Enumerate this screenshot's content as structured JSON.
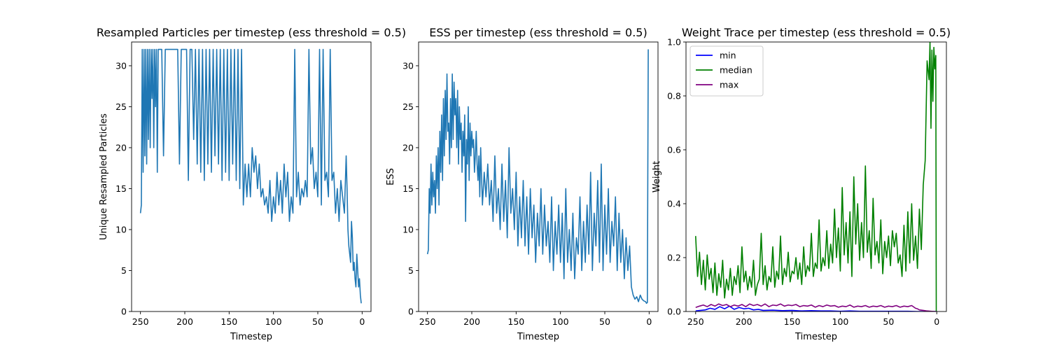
{
  "chart_data": [
    {
      "type": "line",
      "title": "Resampled Particles per timestep (ess threshold = 0.5)",
      "xlabel": "Timestep",
      "ylabel": "Unique Resampled Particles",
      "xlim": [
        260,
        -10
      ],
      "ylim": [
        0,
        32.9
      ],
      "xticks": [
        250,
        200,
        150,
        100,
        50,
        0
      ],
      "yticks": [
        0,
        5,
        10,
        15,
        20,
        25,
        30
      ],
      "grid": false,
      "series": [
        {
          "color": "#1f77b4",
          "x": [
            250,
            249,
            248,
            247,
            246,
            245,
            244,
            243,
            242,
            241,
            240,
            239,
            238,
            237,
            236,
            235,
            234,
            233,
            232,
            231,
            230,
            228,
            226,
            224,
            222,
            220,
            218,
            216,
            214,
            212,
            210,
            208,
            206,
            204,
            202,
            200,
            198,
            196,
            194,
            192,
            190,
            188,
            186,
            184,
            182,
            180,
            178,
            176,
            174,
            172,
            170,
            168,
            166,
            164,
            162,
            160,
            158,
            156,
            154,
            152,
            150,
            148,
            146,
            144,
            142,
            140,
            138,
            136,
            134,
            132,
            130,
            128,
            126,
            124,
            122,
            120,
            118,
            116,
            114,
            112,
            110,
            108,
            106,
            104,
            102,
            100,
            98,
            96,
            94,
            92,
            90,
            88,
            86,
            84,
            82,
            80,
            78,
            76,
            74,
            72,
            70,
            68,
            66,
            64,
            62,
            60,
            58,
            56,
            54,
            52,
            50,
            48,
            46,
            44,
            42,
            40,
            38,
            36,
            34,
            32,
            30,
            28,
            26,
            24,
            22,
            20,
            18,
            17,
            16,
            15,
            14,
            13,
            12,
            11,
            10,
            9,
            8,
            7,
            6,
            5,
            4,
            3,
            2,
            1
          ],
          "values": [
            12,
            13,
            32,
            17,
            32,
            19,
            32,
            18,
            32,
            21,
            32,
            20,
            32,
            26,
            32,
            20,
            32,
            25,
            32,
            17,
            32,
            32,
            32,
            19,
            32,
            32,
            32,
            32,
            32,
            32,
            32,
            32,
            18,
            32,
            32,
            32,
            32,
            16,
            32,
            32,
            21,
            32,
            18,
            32,
            17,
            32,
            16,
            32,
            18,
            32,
            17,
            32,
            19,
            32,
            18,
            32,
            16,
            32,
            17,
            32,
            16,
            32,
            18,
            32,
            16,
            32,
            15,
            32,
            13,
            18,
            14,
            18,
            14,
            20,
            17,
            19,
            15,
            18,
            14,
            15,
            13,
            14,
            12,
            16,
            11,
            14,
            12,
            17,
            13,
            16,
            12,
            18,
            14,
            17,
            11,
            14,
            12,
            32,
            14,
            17,
            13,
            15,
            14,
            16,
            14,
            32,
            18,
            20,
            15,
            17,
            14,
            32,
            13,
            32,
            16,
            17,
            14,
            32,
            16,
            17,
            12,
            15,
            11,
            16,
            14,
            12,
            19,
            15,
            10,
            8,
            7,
            6,
            11,
            9,
            5,
            6,
            4,
            3,
            7,
            5,
            3,
            4,
            2,
            1
          ]
        }
      ]
    },
    {
      "type": "line",
      "title": "ESS per timestep (ess threshold = 0.5)",
      "xlabel": "Timestep",
      "ylabel": "ESS",
      "xlim": [
        260,
        -10
      ],
      "ylim": [
        0,
        32.9
      ],
      "xticks": [
        250,
        200,
        150,
        100,
        50,
        0
      ],
      "yticks": [
        0,
        5,
        10,
        15,
        20,
        25,
        30
      ],
      "grid": false,
      "series": [
        {
          "color": "#1f77b4",
          "x": [
            250,
            249,
            248,
            247,
            246,
            245,
            244,
            243,
            242,
            241,
            240,
            239,
            238,
            237,
            236,
            235,
            234,
            233,
            232,
            231,
            230,
            229,
            228,
            227,
            226,
            225,
            224,
            223,
            222,
            221,
            220,
            219,
            218,
            217,
            216,
            215,
            214,
            213,
            212,
            211,
            210,
            209,
            208,
            207,
            206,
            205,
            204,
            203,
            202,
            201,
            200,
            199,
            198,
            197,
            196,
            195,
            194,
            193,
            192,
            191,
            190,
            188,
            186,
            184,
            182,
            180,
            178,
            176,
            174,
            172,
            170,
            168,
            166,
            164,
            162,
            160,
            158,
            156,
            154,
            152,
            150,
            148,
            146,
            144,
            142,
            140,
            138,
            136,
            134,
            132,
            130,
            128,
            126,
            124,
            122,
            120,
            118,
            116,
            114,
            112,
            110,
            108,
            106,
            104,
            102,
            100,
            98,
            96,
            94,
            92,
            90,
            88,
            86,
            84,
            82,
            80,
            78,
            76,
            74,
            72,
            70,
            68,
            66,
            64,
            62,
            60,
            58,
            56,
            54,
            52,
            50,
            48,
            46,
            44,
            42,
            40,
            38,
            36,
            34,
            32,
            30,
            28,
            26,
            24,
            22,
            20,
            18,
            16,
            14,
            12,
            10,
            8,
            6,
            4,
            3,
            2,
            1
          ],
          "values": [
            7,
            7.5,
            15,
            12,
            18,
            13,
            17,
            14,
            16,
            12,
            19,
            15,
            20,
            13,
            22,
            17,
            24,
            16,
            26,
            19,
            27,
            21,
            29,
            22,
            23,
            18,
            26,
            20,
            29,
            21,
            28,
            24,
            26,
            20,
            27,
            18,
            25,
            21,
            23,
            17,
            22,
            19,
            24,
            11,
            21,
            18,
            25,
            16,
            23,
            19,
            22,
            20,
            21,
            17,
            19,
            22,
            18,
            16,
            19,
            14,
            20,
            13,
            17,
            14,
            18,
            13,
            16,
            11,
            19,
            12,
            15,
            10,
            18,
            11,
            16,
            9,
            20,
            12,
            15,
            10,
            17,
            8,
            14,
            9,
            16,
            8,
            14,
            7,
            15,
            9,
            13,
            6,
            12,
            8,
            15,
            7,
            13,
            8,
            11,
            6,
            14,
            5,
            11,
            7,
            13,
            6,
            12,
            4,
            15,
            6,
            10,
            5,
            12,
            4,
            9,
            7,
            14,
            5,
            11,
            6,
            13,
            7,
            17,
            5,
            12,
            8,
            16,
            6,
            18,
            5,
            13,
            7,
            15,
            6,
            11,
            8,
            14,
            5,
            12,
            6,
            10,
            4,
            9,
            5,
            8,
            3,
            2,
            1.5,
            1.8,
            1.2,
            2,
            1.5,
            1.3,
            1.2,
            1,
            1.1,
            32
          ]
        }
      ]
    },
    {
      "type": "line",
      "title": "Weight Trace per timestep (ess threshold = 0.5)",
      "xlabel": "Timestep",
      "ylabel": "Weight",
      "xlim": [
        260,
        -10
      ],
      "ylim": [
        0,
        1.0
      ],
      "xticks": [
        250,
        200,
        150,
        100,
        50,
        0
      ],
      "yticks": [
        0.0,
        0.2,
        0.4,
        0.6,
        0.8,
        1.0
      ],
      "grid": false,
      "legend": "top-left",
      "series": [
        {
          "name": "min",
          "color": "#0000ff",
          "x": [
            250,
            245,
            240,
            235,
            230,
            225,
            220,
            215,
            210,
            205,
            200,
            195,
            190,
            185,
            180,
            170,
            160,
            150,
            140,
            130,
            120,
            110,
            100,
            90,
            80,
            70,
            60,
            50,
            40,
            30,
            20,
            10,
            0
          ],
          "values": [
            0.002,
            0.004,
            0.006,
            0.012,
            0.008,
            0.018,
            0.01,
            0.02,
            0.008,
            0.015,
            0.01,
            0.012,
            0.006,
            0.008,
            0.004,
            0.005,
            0.003,
            0.004,
            0.002,
            0.003,
            0.002,
            0.002,
            0.001,
            0.002,
            0.001,
            0.001,
            0.001,
            0.001,
            0.001,
            0.001,
            0.0,
            0.0,
            0.0
          ]
        },
        {
          "name": "median",
          "color": "#008000",
          "x": [
            250,
            248,
            246,
            244,
            242,
            240,
            238,
            236,
            234,
            232,
            230,
            228,
            226,
            224,
            222,
            220,
            218,
            216,
            214,
            212,
            210,
            208,
            206,
            204,
            202,
            200,
            198,
            196,
            194,
            192,
            190,
            188,
            186,
            184,
            182,
            180,
            178,
            176,
            174,
            172,
            170,
            168,
            166,
            164,
            162,
            160,
            158,
            156,
            154,
            152,
            150,
            148,
            146,
            144,
            142,
            140,
            138,
            136,
            134,
            132,
            130,
            128,
            126,
            124,
            122,
            120,
            118,
            116,
            114,
            112,
            110,
            108,
            106,
            104,
            102,
            100,
            98,
            96,
            94,
            92,
            90,
            88,
            86,
            84,
            82,
            80,
            78,
            76,
            74,
            72,
            70,
            68,
            66,
            64,
            62,
            60,
            58,
            56,
            54,
            52,
            50,
            48,
            46,
            44,
            42,
            40,
            38,
            36,
            34,
            32,
            30,
            28,
            26,
            24,
            22,
            20,
            18,
            16,
            14,
            12,
            10,
            8,
            7,
            6,
            5,
            4,
            3,
            2,
            1,
            0.5
          ],
          "values": [
            0.28,
            0.13,
            0.22,
            0.1,
            0.19,
            0.08,
            0.21,
            0.12,
            0.16,
            0.07,
            0.18,
            0.06,
            0.14,
            0.09,
            0.19,
            0.05,
            0.12,
            0.08,
            0.16,
            0.06,
            0.13,
            0.1,
            0.17,
            0.07,
            0.24,
            0.11,
            0.15,
            0.08,
            0.13,
            0.09,
            0.19,
            0.06,
            0.1,
            0.12,
            0.29,
            0.1,
            0.17,
            0.08,
            0.13,
            0.11,
            0.24,
            0.09,
            0.15,
            0.12,
            0.28,
            0.1,
            0.16,
            0.13,
            0.22,
            0.11,
            0.15,
            0.14,
            0.2,
            0.12,
            0.18,
            0.1,
            0.24,
            0.13,
            0.17,
            0.15,
            0.29,
            0.13,
            0.18,
            0.16,
            0.34,
            0.15,
            0.2,
            0.17,
            0.3,
            0.16,
            0.25,
            0.18,
            0.38,
            0.2,
            0.31,
            0.15,
            0.46,
            0.21,
            0.33,
            0.18,
            0.37,
            0.13,
            0.5,
            0.25,
            0.4,
            0.19,
            0.33,
            0.2,
            0.54,
            0.22,
            0.3,
            0.16,
            0.42,
            0.21,
            0.26,
            0.18,
            0.34,
            0.14,
            0.26,
            0.2,
            0.28,
            0.17,
            0.3,
            0.24,
            0.29,
            0.18,
            0.21,
            0.13,
            0.32,
            0.15,
            0.37,
            0.18,
            0.4,
            0.19,
            0.28,
            0.16,
            0.38,
            0.23,
            0.47,
            0.56,
            0.93,
            0.86,
            1.0,
            0.68,
            0.97,
            0.78,
            0.98,
            0.9,
            0.95,
            0.0
          ]
        },
        {
          "name": "max",
          "color": "#800080",
          "x": [
            250,
            246,
            242,
            238,
            234,
            230,
            226,
            222,
            218,
            214,
            210,
            206,
            202,
            198,
            194,
            190,
            186,
            182,
            178,
            174,
            170,
            166,
            162,
            158,
            154,
            150,
            146,
            142,
            138,
            134,
            130,
            126,
            122,
            118,
            114,
            110,
            106,
            102,
            98,
            94,
            90,
            86,
            82,
            78,
            74,
            70,
            66,
            62,
            58,
            54,
            50,
            46,
            42,
            38,
            34,
            30,
            26,
            22,
            20,
            18,
            14,
            10,
            6,
            2,
            0
          ],
          "values": [
            0.015,
            0.02,
            0.024,
            0.018,
            0.026,
            0.02,
            0.028,
            0.022,
            0.026,
            0.018,
            0.024,
            0.02,
            0.026,
            0.018,
            0.028,
            0.022,
            0.026,
            0.02,
            0.028,
            0.018,
            0.024,
            0.022,
            0.028,
            0.02,
            0.024,
            0.022,
            0.026,
            0.018,
            0.022,
            0.02,
            0.024,
            0.016,
            0.022,
            0.018,
            0.024,
            0.02,
            0.022,
            0.016,
            0.02,
            0.018,
            0.024,
            0.016,
            0.02,
            0.018,
            0.022,
            0.016,
            0.02,
            0.018,
            0.022,
            0.016,
            0.02,
            0.018,
            0.022,
            0.016,
            0.02,
            0.018,
            0.022,
            0.012,
            0.01,
            0.006,
            0.004,
            0.002,
            0.001,
            0.0,
            0.0
          ]
        }
      ]
    }
  ]
}
